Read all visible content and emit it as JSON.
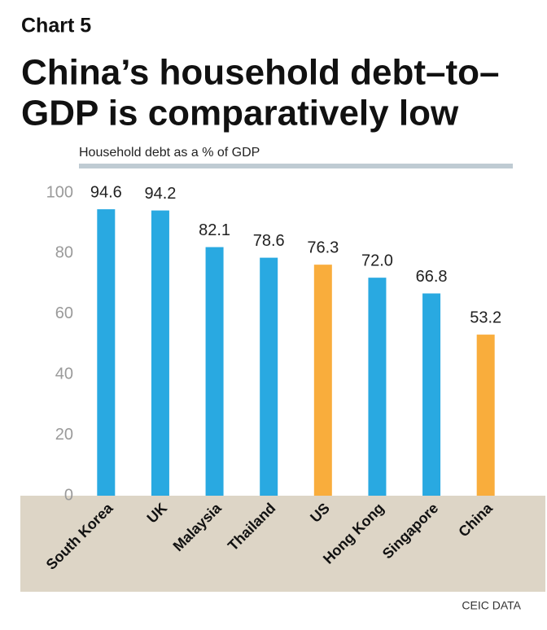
{
  "chart_data": {
    "type": "bar",
    "kicker": "Chart 5",
    "title": [
      "China’s household debt–to–",
      "GDP is comparatively low"
    ],
    "subtitle": "Household debt as a % of GDP",
    "categories": [
      "South Korea",
      "UK",
      "Malaysia",
      "Thailand",
      "US",
      "Hong Kong",
      "Singapore",
      "China"
    ],
    "values": [
      94.6,
      94.2,
      82.1,
      78.6,
      76.3,
      72.0,
      66.8,
      53.2
    ],
    "value_labels": [
      "94.6",
      "94.2",
      "82.1",
      "78.6",
      "76.3",
      "72.0",
      "66.8",
      "53.2"
    ],
    "colors": [
      "#29a9e1",
      "#29a9e1",
      "#29a9e1",
      "#29a9e1",
      "#f9ad3c",
      "#29a9e1",
      "#29a9e1",
      "#f9ad3c"
    ],
    "ylim": [
      0,
      100
    ],
    "yticks": [
      0,
      20,
      40,
      60,
      80,
      100
    ],
    "grid": false,
    "source": "CEIC DATA"
  }
}
